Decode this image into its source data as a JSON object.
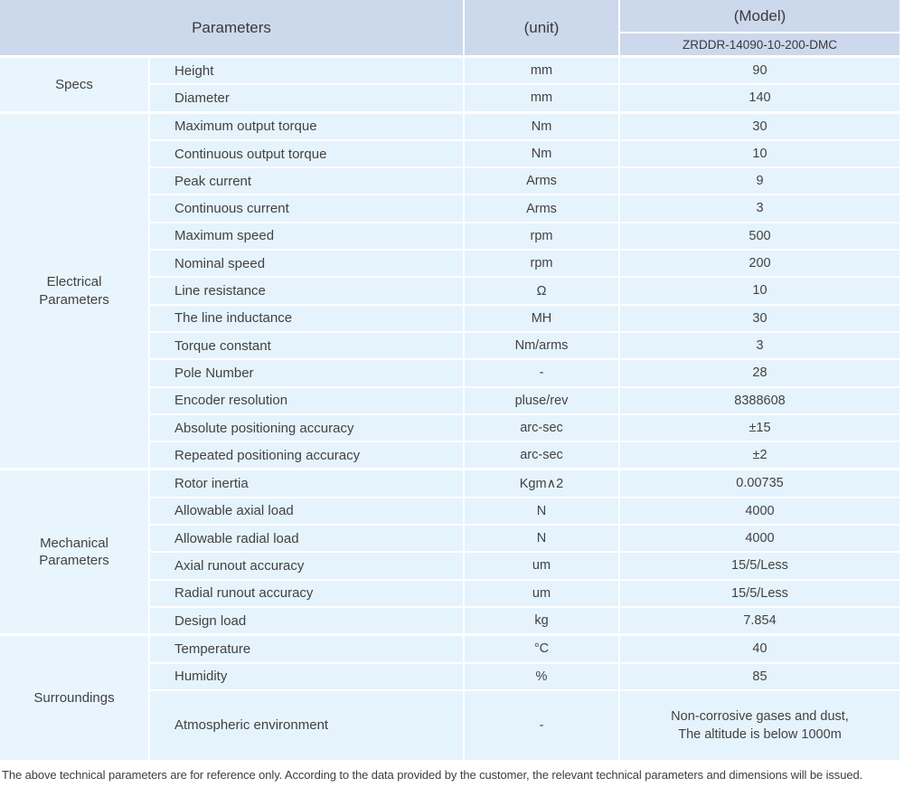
{
  "table": {
    "header": {
      "parameters_label": "Parameters",
      "unit_label": "(unit)",
      "model_label": "(Model)",
      "model_value": "ZRDDR-14090-10-200-DMC"
    },
    "sections": [
      {
        "group": "Specs",
        "rows": [
          {
            "name": "Height",
            "unit": "mm",
            "value": "90"
          },
          {
            "name": "Diameter",
            "unit": "mm",
            "value": "140"
          }
        ]
      },
      {
        "group": "Electrical Parameters",
        "rows": [
          {
            "name": "Maximum output torque",
            "unit": "Nm",
            "value": "30"
          },
          {
            "name": "Continuous output torque",
            "unit": "Nm",
            "value": "10"
          },
          {
            "name": "Peak current",
            "unit": "Arms",
            "value": "9"
          },
          {
            "name": "Continuous current",
            "unit": "Arms",
            "value": "3"
          },
          {
            "name": "Maximum speed",
            "unit": "rpm",
            "value": "500"
          },
          {
            "name": "Nominal speed",
            "unit": "rpm",
            "value": "200"
          },
          {
            "name": "Line resistance",
            "unit": "Ω",
            "value": "10"
          },
          {
            "name": "The line inductance",
            "unit": "MH",
            "value": "30"
          },
          {
            "name": "Torque constant",
            "unit": "Nm/arms",
            "value": "3"
          },
          {
            "name": "Pole Number",
            "unit": "-",
            "value": "28"
          },
          {
            "name": "Encoder resolution",
            "unit": "pluse/rev",
            "value": "8388608"
          },
          {
            "name": "Absolute positioning accuracy",
            "unit": "arc-sec",
            "value": "±15"
          },
          {
            "name": "Repeated positioning accuracy",
            "unit": "arc-sec",
            "value": "±2"
          }
        ]
      },
      {
        "group": "Mechanical Parameters",
        "rows": [
          {
            "name": "Rotor inertia",
            "unit": "Kgm∧2",
            "value": "0.00735"
          },
          {
            "name": "Allowable axial load",
            "unit": "N",
            "value": "4000"
          },
          {
            "name": "Allowable radial load",
            "unit": "N",
            "value": "4000"
          },
          {
            "name": "Axial runout accuracy",
            "unit": "um",
            "value": "15/5/Less"
          },
          {
            "name": "Radial runout accuracy",
            "unit": "um",
            "value": "15/5/Less"
          },
          {
            "name": "Design load",
            "unit": "kg",
            "value": "7.854"
          }
        ]
      },
      {
        "group": "Surroundings",
        "rows": [
          {
            "name": "Temperature",
            "unit": "°C",
            "value": "40"
          },
          {
            "name": "Humidity",
            "unit": "%",
            "value": "85"
          },
          {
            "name": "Atmospheric environment",
            "unit": "-",
            "value": "Non-corrosive gases and dust,\nThe altitude is below 1000m"
          }
        ]
      }
    ],
    "footer_note": "The above technical parameters are for reference only. According to the data provided by the customer, the relevant technical parameters and dimensions will be issued."
  },
  "colors": {
    "header_bg": "#ccd8ec",
    "row_bg": "#e5f3fc",
    "text": "#404040"
  }
}
